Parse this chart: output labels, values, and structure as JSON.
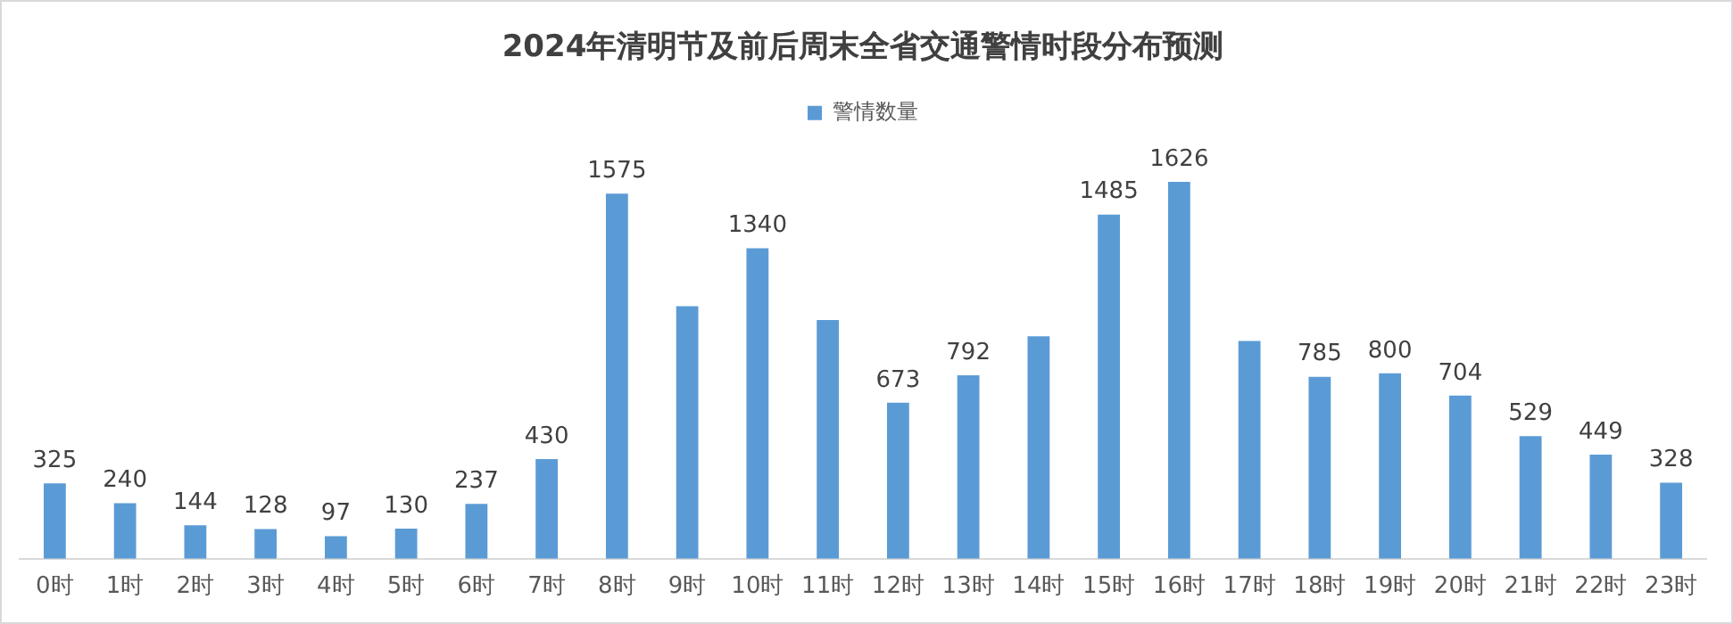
{
  "chart_data": {
    "type": "bar",
    "title": "2024年清明节及前后周末全省交通警情时段分布预测",
    "categories": [
      "0时",
      "1时",
      "2时",
      "3时",
      "4时",
      "5时",
      "6时",
      "7时",
      "8时",
      "9时",
      "10时",
      "11时",
      "12时",
      "13时",
      "14时",
      "15时",
      "16时",
      "17时",
      "18时",
      "19时",
      "20时",
      "21时",
      "22时",
      "23时"
    ],
    "series": [
      {
        "name": "警情数量",
        "color": "#5b9bd5",
        "values": [
          325,
          240,
          144,
          128,
          97,
          130,
          237,
          430,
          1575,
          1090,
          1340,
          1030,
          673,
          792,
          960,
          1485,
          1626,
          940,
          785,
          800,
          704,
          529,
          449,
          328
        ],
        "value_labels": [
          "325",
          "240",
          "144",
          "128",
          "97",
          "130",
          "237",
          "430",
          "1575",
          null,
          "1340",
          null,
          "673",
          "792",
          null,
          "1485",
          "1626",
          null,
          "785",
          "800",
          "704",
          "529",
          "449",
          "328"
        ]
      }
    ],
    "legend": "top",
    "grid": false
  }
}
